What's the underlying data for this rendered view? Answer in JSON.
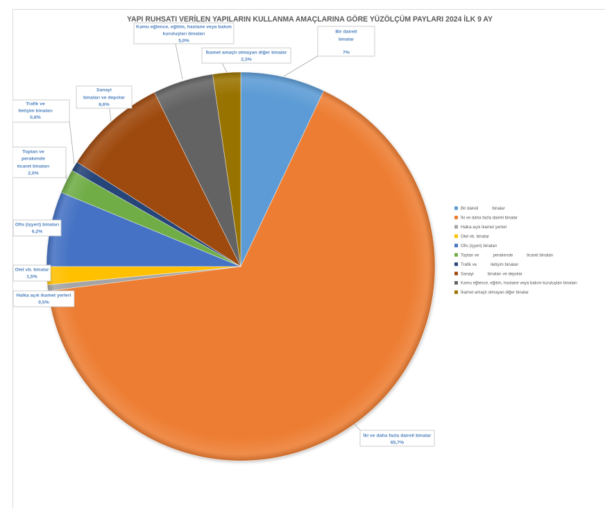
{
  "chart_data": {
    "type": "pie",
    "title": "YAPI RUHSATI VERİLEN YAPILARIN KULLANMA AMAÇLARINA GÖRE YÜZÖLÇÜM PAYLARI 2024 İLK 9 AY",
    "legend": "right",
    "categories": [
      [
        "Bir daireli",
        "binalar"
      ],
      [
        "İki ve daha fazla daireli binalar"
      ],
      [
        "Halka açık ikamet yerleri"
      ],
      [
        "Otel vb. binalar"
      ],
      [
        "Ofis (işyeri) binaları"
      ],
      [
        "Toptan ve",
        "perakende",
        "ticaret binaları"
      ],
      [
        "Trafik ve",
        "iletişim binaları"
      ],
      [
        "Sanayi",
        "binaları ve depolar"
      ],
      [
        "Kamu eğlence, eğitim, hastane veya bakım kuruluşları binaları"
      ],
      [
        "İkamet amaçlı olmayan diğer binalar"
      ]
    ],
    "values": [
      7.0,
      65.7,
      0.5,
      1.5,
      6.2,
      2.0,
      0.8,
      8.6,
      5.0,
      2.3
    ],
    "data_labels": [
      {
        "text": [
          "Bir daireli",
          "binalar"
        ],
        "value": "7%"
      },
      {
        "text": [
          "İki ve daha fazla daireli binalar"
        ],
        "value": "65,7%"
      },
      {
        "text": [
          "Halka açık ikamet yerleri"
        ],
        "value": "0,5%"
      },
      {
        "text": [
          "Otel vb. binalar"
        ],
        "value": "1,5%"
      },
      {
        "text": [
          "Ofis (işyeri) binaları"
        ],
        "value": "6,2%"
      },
      {
        "text": [
          "Toptan ve",
          "perakende",
          "ticaret binaları"
        ],
        "value": "2,0%"
      },
      {
        "text": [
          "Trafik ve",
          "iletişim binaları"
        ],
        "value": "0,8%"
      },
      {
        "text": [
          "Sanayi",
          "binaları ve depolar"
        ],
        "value": "8,6%"
      },
      {
        "text": [
          "Kamu eğlence, eğitim, hastane veya bakım",
          "kuruluşları binaları"
        ],
        "value": "5,0%"
      },
      {
        "text": [
          "İkamet amaçlı olmayan diğer binalar"
        ],
        "value": "2,3%"
      }
    ],
    "colors": [
      "#5B9BD5",
      "#ED7D31",
      "#A5A5A5",
      "#FFC000",
      "#4472C4",
      "#70AD47",
      "#264478",
      "#9E480E",
      "#636363",
      "#997300"
    ],
    "data_label_color": "#4F81BD"
  }
}
